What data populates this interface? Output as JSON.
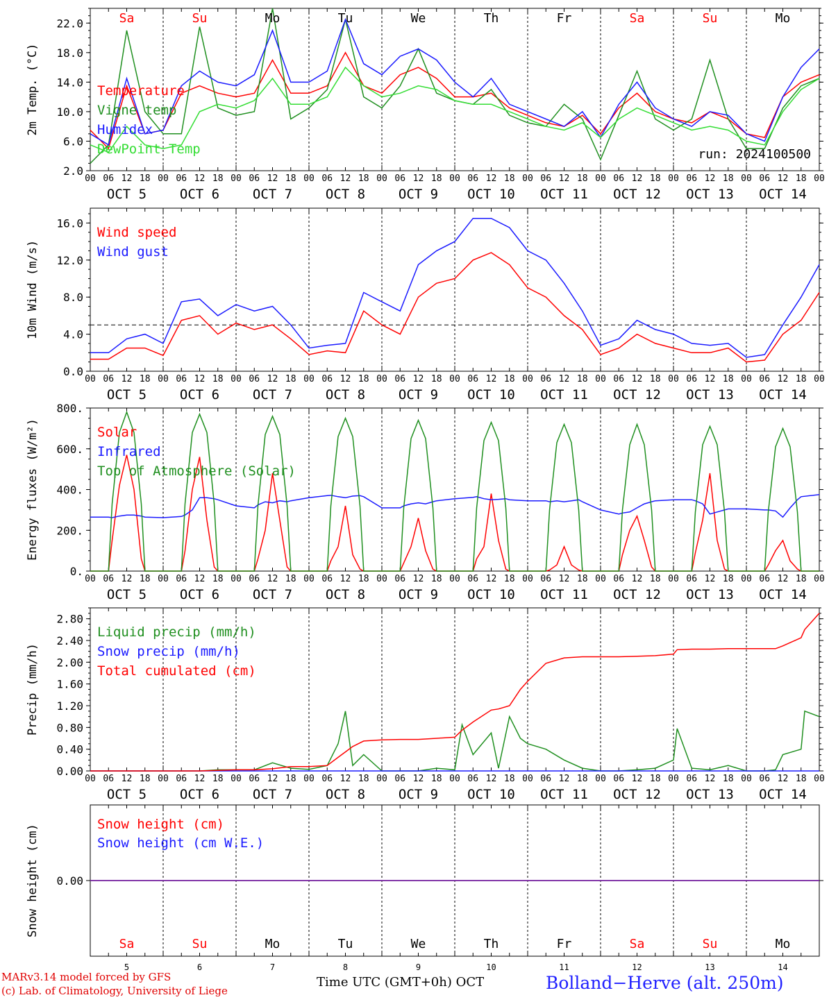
{
  "colors": {
    "red": "#ff0000",
    "green": "#1f8f1f",
    "blue": "#1a1aff",
    "lime": "#33dd33",
    "purple": "#8030a0",
    "grid": "#000000"
  },
  "axis": {
    "hour_ticks": [
      "00",
      "06",
      "12",
      "18",
      "00",
      "06",
      "12",
      "18",
      "00",
      "06",
      "12",
      "18",
      "00",
      "06",
      "12",
      "18",
      "00",
      "06",
      "12",
      "18",
      "00",
      "06",
      "12",
      "18",
      "00",
      "06",
      "12",
      "18",
      "00",
      "06",
      "12",
      "18",
      "00",
      "06",
      "12",
      "18",
      "00",
      "06",
      "12",
      "18",
      "00"
    ],
    "date_labels": [
      "OCT  5",
      "OCT  6",
      "OCT  7",
      "OCT  8",
      "OCT  9",
      "OCT 10",
      "OCT 11",
      "OCT 12",
      "OCT 13",
      "OCT 14"
    ],
    "weekdays": [
      {
        "label": "Sa",
        "weekend": true
      },
      {
        "label": "Su",
        "weekend": true
      },
      {
        "label": "Mo",
        "weekend": false
      },
      {
        "label": "Tu",
        "weekend": false
      },
      {
        "label": "We",
        "weekend": false
      },
      {
        "label": "Th",
        "weekend": false
      },
      {
        "label": "Fr",
        "weekend": false
      },
      {
        "label": "Sa",
        "weekend": true
      },
      {
        "label": "Su",
        "weekend": true
      },
      {
        "label": "Mo",
        "weekend": false
      }
    ],
    "day_numbers": [
      "5",
      "6",
      "7",
      "8",
      "9",
      "10",
      "11",
      "12",
      "13",
      "14"
    ]
  },
  "chart_data": [
    {
      "type": "line",
      "ylabel": "2m Temp. (°C)",
      "ylim": [
        2.0,
        24.0
      ],
      "yticks": [
        "2.0",
        "6.0",
        "10.0",
        "14.0",
        "18.0",
        "22.0"
      ],
      "ytick_values": [
        2,
        6,
        10,
        14,
        18,
        22
      ],
      "annotation": "run: 2024100500",
      "show_weekdays": true,
      "x_days": [
        0,
        0.25,
        0.5,
        0.75,
        1,
        1.25,
        1.5,
        1.75,
        2,
        2.25,
        2.5,
        2.75,
        3,
        3.25,
        3.5,
        3.75,
        4,
        4.25,
        4.5,
        4.75,
        5,
        5.25,
        5.5,
        5.75,
        6,
        6.25,
        6.5,
        6.75,
        7,
        7.25,
        7.5,
        7.75,
        8,
        8.25,
        8.5,
        8.75,
        9,
        9.25,
        9.5,
        9.75,
        10
      ],
      "series": [
        {
          "name": "Temperature",
          "color": "red",
          "values": [
            7.5,
            5.0,
            13.5,
            7.0,
            7.5,
            12.5,
            13.5,
            12.5,
            12.0,
            12.5,
            17.0,
            12.5,
            12.5,
            13.5,
            18.0,
            13.5,
            12.5,
            15.0,
            16.0,
            14.5,
            12.0,
            12.0,
            12.5,
            10.5,
            9.5,
            8.5,
            8.0,
            9.5,
            7.0,
            10.5,
            12.5,
            10.0,
            9.0,
            8.5,
            10.0,
            9.0,
            7.0,
            6.5,
            12.0,
            14.0,
            15.0
          ]
        },
        {
          "name": "Vigne temp",
          "color": "green",
          "values": [
            3.0,
            5.5,
            21.0,
            10.0,
            7.0,
            7.0,
            21.5,
            10.5,
            9.5,
            10.0,
            24.0,
            9.0,
            10.5,
            13.0,
            22.5,
            12.0,
            10.5,
            13.5,
            18.5,
            12.5,
            11.5,
            11.0,
            13.0,
            9.5,
            8.5,
            8.0,
            11.0,
            9.0,
            3.5,
            9.5,
            15.5,
            9.0,
            7.5,
            9.0,
            17.0,
            9.0,
            5.0,
            5.0,
            10.5,
            13.5,
            14.5
          ]
        },
        {
          "name": "Humidex",
          "color": "blue",
          "values": [
            7.0,
            5.5,
            14.5,
            7.0,
            7.5,
            13.5,
            15.5,
            14.0,
            13.5,
            15.0,
            21.0,
            14.0,
            14.0,
            15.5,
            22.5,
            16.5,
            15.0,
            17.5,
            18.5,
            17.0,
            14.0,
            12.0,
            14.5,
            11.0,
            10.0,
            9.0,
            8.0,
            10.0,
            6.5,
            11.0,
            14.0,
            10.5,
            9.0,
            8.0,
            10.0,
            9.5,
            7.0,
            6.0,
            12.0,
            16.0,
            18.5
          ]
        },
        {
          "name": "DewPoint Temp",
          "color": "lime",
          "values": [
            5.5,
            4.5,
            8.0,
            5.5,
            5.0,
            5.5,
            10.0,
            11.0,
            10.5,
            11.5,
            14.5,
            11.0,
            11.0,
            12.0,
            16.0,
            13.5,
            12.0,
            12.5,
            13.5,
            13.0,
            11.5,
            11.0,
            11.0,
            10.0,
            9.0,
            8.0,
            7.5,
            8.5,
            6.5,
            9.0,
            10.5,
            9.5,
            8.5,
            7.5,
            8.0,
            7.5,
            6.0,
            5.5,
            10.0,
            13.0,
            14.5
          ]
        }
      ]
    },
    {
      "type": "line",
      "ylabel": "10m Wind (m/s)",
      "ylim": [
        0,
        17.6
      ],
      "yticks": [
        "0.0",
        "4.0",
        "8.0",
        "12.0",
        "16.0"
      ],
      "ytick_values": [
        0,
        4,
        8,
        12,
        16
      ],
      "hline": 5.0,
      "show_weekdays": false,
      "x_days": [
        0,
        0.25,
        0.5,
        0.75,
        1,
        1.25,
        1.5,
        1.75,
        2,
        2.25,
        2.5,
        2.75,
        3,
        3.25,
        3.5,
        3.75,
        4,
        4.25,
        4.5,
        4.75,
        5,
        5.25,
        5.5,
        5.75,
        6,
        6.25,
        6.5,
        6.75,
        7,
        7.25,
        7.5,
        7.75,
        8,
        8.25,
        8.5,
        8.75,
        9,
        9.25,
        9.5,
        9.75,
        10
      ],
      "series": [
        {
          "name": "Wind speed",
          "color": "red",
          "values": [
            1.3,
            1.3,
            2.5,
            2.5,
            1.7,
            5.5,
            6.0,
            4.0,
            5.2,
            4.5,
            5.0,
            3.5,
            1.8,
            2.2,
            2.0,
            6.5,
            5.0,
            4.0,
            8.0,
            9.5,
            10.0,
            12.0,
            12.8,
            11.5,
            9.0,
            8.0,
            6.0,
            4.5,
            1.8,
            2.5,
            4.0,
            3.0,
            2.5,
            2.0,
            2.0,
            2.5,
            1.0,
            1.2,
            4.0,
            5.5,
            8.5
          ]
        },
        {
          "name": "Wind gust",
          "color": "blue",
          "values": [
            2.0,
            2.0,
            3.5,
            4.0,
            3.0,
            7.5,
            7.8,
            6.0,
            7.2,
            6.5,
            7.0,
            5.0,
            2.5,
            2.8,
            3.0,
            8.5,
            7.5,
            6.5,
            11.5,
            13.0,
            14.0,
            16.5,
            16.5,
            15.5,
            13.0,
            12.0,
            9.5,
            6.5,
            2.8,
            3.5,
            5.5,
            4.5,
            4.0,
            3.0,
            2.8,
            3.0,
            1.5,
            1.8,
            5.0,
            8.0,
            11.5
          ]
        }
      ]
    },
    {
      "type": "line",
      "ylabel": "Energy fluxes (W/m²)",
      "ylim": [
        0,
        800
      ],
      "yticks": [
        "0.",
        "200.",
        "400.",
        "600.",
        "800."
      ],
      "ytick_values": [
        0,
        200,
        400,
        600,
        800
      ],
      "show_weekdays": false,
      "x_days": [
        0,
        0.25,
        0.3,
        0.4,
        0.5,
        0.6,
        0.7,
        0.75,
        1,
        1.25,
        1.3,
        1.4,
        1.5,
        1.6,
        1.7,
        1.75,
        2,
        2.25,
        2.3,
        2.4,
        2.5,
        2.6,
        2.7,
        2.75,
        3,
        3.25,
        3.3,
        3.4,
        3.5,
        3.6,
        3.7,
        3.75,
        4,
        4.25,
        4.3,
        4.4,
        4.5,
        4.6,
        4.7,
        4.75,
        5,
        5.25,
        5.3,
        5.4,
        5.5,
        5.6,
        5.7,
        5.75,
        6,
        6.25,
        6.3,
        6.4,
        6.5,
        6.6,
        6.7,
        6.75,
        7,
        7.25,
        7.3,
        7.4,
        7.5,
        7.6,
        7.7,
        7.75,
        8,
        8.25,
        8.3,
        8.4,
        8.5,
        8.6,
        8.7,
        8.75,
        9,
        9.25,
        9.3,
        9.4,
        9.5,
        9.6,
        9.7,
        9.75,
        10
      ],
      "series": [
        {
          "name": "Solar",
          "color": "red",
          "values": [
            0,
            0,
            150,
            420,
            570,
            400,
            60,
            0,
            0,
            0,
            100,
            400,
            560,
            250,
            20,
            0,
            0,
            0,
            60,
            200,
            480,
            250,
            20,
            0,
            0,
            0,
            50,
            120,
            320,
            80,
            10,
            0,
            0,
            0,
            40,
            120,
            260,
            100,
            10,
            0,
            0,
            0,
            60,
            120,
            380,
            150,
            10,
            0,
            0,
            0,
            5,
            30,
            120,
            30,
            5,
            0,
            0,
            0,
            80,
            200,
            270,
            150,
            20,
            0,
            0,
            0,
            90,
            250,
            480,
            150,
            10,
            0,
            0,
            0,
            30,
            100,
            150,
            50,
            10,
            0,
            0
          ]
        },
        {
          "name": "Infrared",
          "color": "blue",
          "values": [
            265,
            265,
            262,
            270,
            275,
            275,
            270,
            265,
            262,
            268,
            275,
            300,
            360,
            360,
            355,
            350,
            320,
            310,
            325,
            340,
            335,
            345,
            340,
            345,
            360,
            370,
            372,
            365,
            360,
            368,
            370,
            365,
            310,
            310,
            320,
            330,
            335,
            330,
            340,
            345,
            355,
            362,
            365,
            355,
            350,
            352,
            355,
            350,
            345,
            345,
            340,
            345,
            340,
            345,
            350,
            340,
            300,
            280,
            285,
            290,
            310,
            330,
            340,
            345,
            350,
            350,
            345,
            330,
            280,
            290,
            300,
            305,
            305,
            300,
            300,
            295,
            265,
            310,
            350,
            365,
            375
          ]
        },
        {
          "name": "Top of Atmosphere (Solar)",
          "color": "green",
          "values": [
            0,
            0,
            330,
            680,
            780,
            680,
            330,
            0,
            0,
            0,
            330,
            680,
            770,
            680,
            330,
            0,
            0,
            0,
            320,
            670,
            760,
            670,
            320,
            0,
            0,
            0,
            320,
            660,
            750,
            660,
            320,
            0,
            0,
            0,
            310,
            650,
            740,
            650,
            310,
            0,
            0,
            0,
            310,
            640,
            730,
            640,
            310,
            0,
            0,
            0,
            300,
            630,
            720,
            630,
            300,
            0,
            0,
            0,
            300,
            620,
            720,
            620,
            300,
            0,
            0,
            0,
            290,
            620,
            710,
            620,
            290,
            0,
            0,
            0,
            290,
            610,
            700,
            610,
            290,
            0,
            0
          ]
        }
      ]
    },
    {
      "type": "line",
      "ylabel": "Precip (mm/h)",
      "ylim": [
        0,
        3.0
      ],
      "yticks": [
        "0.00",
        "0.40",
        "0.80",
        "1.20",
        "1.60",
        "2.00",
        "2.40",
        "2.80"
      ],
      "ytick_values": [
        0,
        0.4,
        0.8,
        1.2,
        1.6,
        2.0,
        2.4,
        2.8
      ],
      "show_weekdays": false,
      "x_days": [
        0,
        0.25,
        0.5,
        0.75,
        1,
        1.25,
        1.5,
        1.75,
        2,
        2.25,
        2.5,
        2.75,
        3,
        3.25,
        3.4,
        3.5,
        3.6,
        3.75,
        4,
        4.25,
        4.5,
        4.75,
        5,
        5.1,
        5.25,
        5.5,
        5.6,
        5.75,
        5.9,
        6,
        6.25,
        6.5,
        6.75,
        7,
        7.25,
        7.5,
        7.75,
        8,
        8.05,
        8.25,
        8.5,
        8.75,
        9,
        9.25,
        9.4,
        9.5,
        9.75,
        9.8,
        10
      ],
      "series": [
        {
          "name": "Liquid precip (mm/h)",
          "color": "green",
          "values": [
            0,
            0,
            0,
            0,
            0,
            0,
            0,
            0.02,
            0.02,
            0.02,
            0.15,
            0.05,
            0.03,
            0.1,
            0.5,
            1.1,
            0.1,
            0.3,
            0,
            0,
            0,
            0.05,
            0.02,
            0.85,
            0.3,
            0.7,
            0.05,
            1.0,
            0.6,
            0.5,
            0.4,
            0.2,
            0.05,
            0,
            0,
            0.02,
            0.05,
            0.2,
            0.78,
            0.05,
            0.02,
            0.1,
            0,
            0,
            0.02,
            0.3,
            0.4,
            1.1,
            1.0
          ]
        },
        {
          "name": "Snow precip (mm/h)",
          "color": "blue",
          "values": [
            0,
            0,
            0,
            0,
            0,
            0,
            0,
            0,
            0,
            0,
            0,
            0,
            0,
            0,
            0,
            0,
            0,
            0,
            0,
            0,
            0,
            0,
            0,
            0,
            0,
            0,
            0,
            0,
            0,
            0,
            0,
            0,
            0,
            0,
            0,
            0,
            0,
            0,
            0,
            0,
            0,
            0,
            0,
            0,
            0,
            0,
            0,
            0,
            0
          ]
        },
        {
          "name": "Total cumulated (cm)",
          "color": "red",
          "values": [
            0,
            0,
            0,
            0,
            0,
            0,
            0,
            0.01,
            0.02,
            0.02,
            0.04,
            0.08,
            0.08,
            0.1,
            0.25,
            0.35,
            0.45,
            0.55,
            0.57,
            0.58,
            0.58,
            0.6,
            0.62,
            0.75,
            0.9,
            1.12,
            1.14,
            1.2,
            1.5,
            1.65,
            1.98,
            2.08,
            2.1,
            2.1,
            2.1,
            2.11,
            2.12,
            2.15,
            2.23,
            2.24,
            2.24,
            2.25,
            2.25,
            2.25,
            2.25,
            2.3,
            2.45,
            2.6,
            2.9
          ]
        }
      ]
    },
    {
      "type": "line",
      "ylabel": "Snow height (cm)",
      "ylim": [
        -1,
        1
      ],
      "yticks": [
        "0.00"
      ],
      "ytick_values": [
        0
      ],
      "show_weekdays": true,
      "x_days": [
        0,
        10
      ],
      "series": [
        {
          "name": "Snow height (cm)",
          "color": "red",
          "values": [
            0,
            0
          ]
        },
        {
          "name": "Snow height (cm W.E.)",
          "color": "blue",
          "values": [
            0,
            0
          ]
        }
      ]
    }
  ],
  "footer": {
    "model_line": "MARv3.14 model forced by GFS",
    "copyright_line": "(c) Lab. of Climatology, University of Liege",
    "xlabel": "Time UTC (GMT+0h)",
    "month": "OCT",
    "location": "Bolland−Herve (alt. 250m)"
  }
}
